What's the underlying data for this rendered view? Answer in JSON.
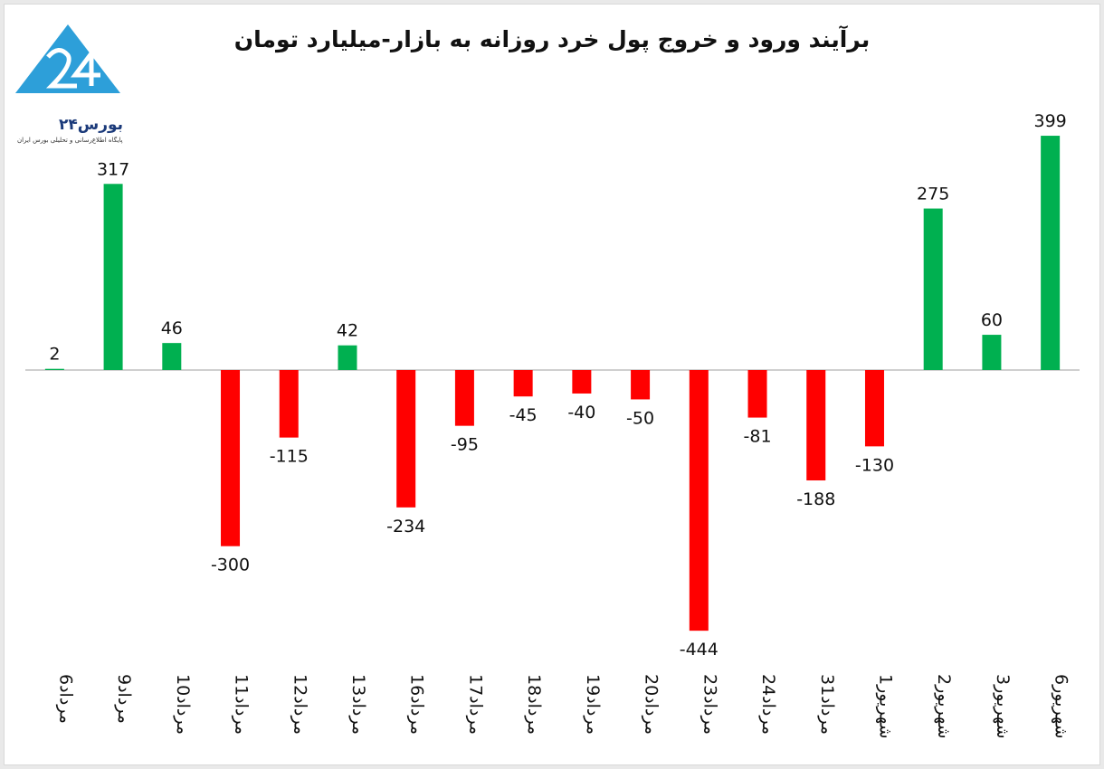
{
  "chart_data": {
    "type": "bar",
    "title": "برآیند ورود و خروج پول خرد روزانه به بازار-میلیارد تومان",
    "xlabel": "",
    "ylabel": "",
    "categories": [
      "6مرداد",
      "9مرداد",
      "10مرداد",
      "11مرداد",
      "12مرداد",
      "13مرداد",
      "16مرداد",
      "17مرداد",
      "18مرداد",
      "19مرداد",
      "20مرداد",
      "23مرداد",
      "24مرداد",
      "31مرداد",
      "1شهریور",
      "2شهریور",
      "3شهریور",
      "6شهریور"
    ],
    "values": [
      2,
      317,
      46,
      -300,
      -115,
      42,
      -234,
      -95,
      -45,
      -40,
      -50,
      -444,
      -81,
      -188,
      -130,
      275,
      60,
      399
    ],
    "data_labels": [
      "2",
      "317",
      "46",
      "-300",
      "-115",
      "42",
      "-234",
      "-95",
      "-45",
      "-40",
      "-50",
      "-444",
      "-81",
      "-188",
      "-130",
      "275",
      "60",
      "399"
    ],
    "ylim": [
      -444,
      399
    ],
    "grid": false,
    "legend": "none",
    "colors": {
      "positive": "#00b050",
      "negative": "#ff0000",
      "axis": "#bfbfbf"
    }
  },
  "logo": {
    "name": "بورس۲۴",
    "tagline": "پایگاه اطلاع‌رسانی و تحلیلی بورس ایران",
    "icon": "bourse24-logo-icon",
    "color": "#2d9fd9"
  }
}
